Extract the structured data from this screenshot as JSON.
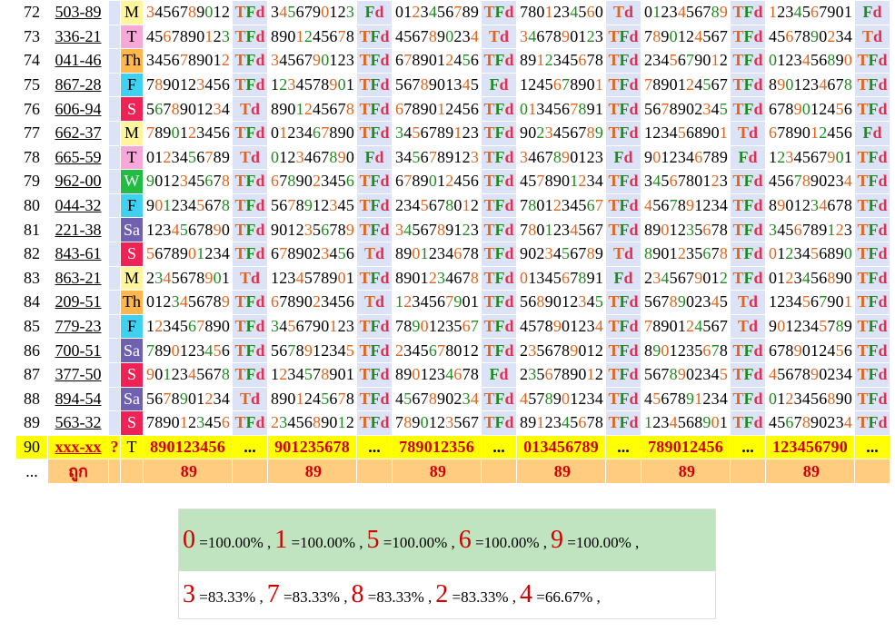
{
  "rows": [
    {
      "no": "72",
      "code": "503-89",
      "day": "M",
      "nums": [
        "3456789012",
        "3456790123",
        "0123456789",
        "7801234560",
        "0123456789",
        "1234567901"
      ],
      "res": [
        "TFd",
        "Fd",
        "TFd",
        "Td",
        "TFd",
        "Fd"
      ]
    },
    {
      "no": "73",
      "code": "336-21",
      "day": "T",
      "nums": [
        "4567890123",
        "8901245678",
        "4567890234",
        "3467890123",
        "7890124567",
        "4567890234"
      ],
      "res": [
        "TFd",
        "TFd",
        "Td",
        "TFd",
        "TFd",
        "Td"
      ]
    },
    {
      "no": "74",
      "code": "041-46",
      "day": "Th",
      "nums": [
        "3456789012",
        "3456790123",
        "6789012456",
        "8912345678",
        "2345679012",
        "0123456890"
      ],
      "res": [
        "TFd",
        "TFd",
        "TFd",
        "TFd",
        "TFd",
        "TFd"
      ]
    },
    {
      "no": "75",
      "code": "867-28",
      "day": "F",
      "nums": [
        "7890123456",
        "1234578901",
        "5678901345",
        "1245678901",
        "7890124567",
        "8901234678"
      ],
      "res": [
        "TFd",
        "TFd",
        "Fd",
        "TFd",
        "TFd",
        "TFd"
      ]
    },
    {
      "no": "76",
      "code": "606-94",
      "day": "S",
      "nums": [
        "5678901234",
        "8901245678",
        "6789012456",
        "0134567891",
        "5678902345",
        "6789012456"
      ],
      "res": [
        "Td",
        "TFd",
        "TFd",
        "TFd",
        "TFd",
        "TFd"
      ]
    },
    {
      "no": "77",
      "code": "662-37",
      "day": "M",
      "nums": [
        "7890123456",
        "0123467890",
        "3456789123",
        "9023456789",
        "1234568901",
        "6789012456"
      ],
      "res": [
        "TFd",
        "TFd",
        "TFd",
        "TFd",
        "Td",
        "Fd"
      ]
    },
    {
      "no": "78",
      "code": "665-59",
      "day": "T",
      "nums": [
        "0123456789",
        "0123467890",
        "3456789123",
        "3467890123",
        "9012346789",
        "1234567901"
      ],
      "res": [
        "Td",
        "Fd",
        "TFd",
        "Fd",
        "Fd",
        "TFd"
      ]
    },
    {
      "no": "79",
      "code": "962-00",
      "day": "W",
      "nums": [
        "9012345678",
        "6789023456",
        "6789012456",
        "4578901234",
        "3456780123",
        "4567890234"
      ],
      "res": [
        "TFd",
        "TFd",
        "TFd",
        "TFd",
        "TFd",
        "TFd"
      ]
    },
    {
      "no": "80",
      "code": "044-32",
      "day": "F",
      "nums": [
        "9012345678",
        "5678912345",
        "2345678012",
        "7801234567",
        "4567891234",
        "8901234678"
      ],
      "res": [
        "TFd",
        "TFd",
        "TFd",
        "TFd",
        "TFd",
        "TFd"
      ]
    },
    {
      "no": "81",
      "code": "221-38",
      "day": "Sa",
      "nums": [
        "1234567890",
        "9012356789",
        "3456789123",
        "7801234567",
        "8901235678",
        "3456789123"
      ],
      "res": [
        "TFd",
        "TFd",
        "TFd",
        "TFd",
        "TFd",
        "TFd"
      ]
    },
    {
      "no": "82",
      "code": "843-61",
      "day": "S",
      "nums": [
        "5678901234",
        "6789023456",
        "8901234678",
        "9023456789",
        "8901235678",
        "0123456890"
      ],
      "res": [
        "TFd",
        "Td",
        "TFd",
        "Td",
        "TFd",
        "TFd"
      ]
    },
    {
      "no": "83",
      "code": "863-21",
      "day": "M",
      "nums": [
        "2345678901",
        "1234578901",
        "8901234678",
        "0134567891",
        "2345679012",
        "0123456890"
      ],
      "res": [
        "Td",
        "TFd",
        "TFd",
        "Fd",
        "TFd",
        "TFd"
      ]
    },
    {
      "no": "84",
      "code": "209-51",
      "day": "Th",
      "nums": [
        "0123456789",
        "6789023456",
        "1234567901",
        "5689012345",
        "5678902345",
        "1234567901"
      ],
      "res": [
        "TFd",
        "Td",
        "TFd",
        "TFd",
        "Td",
        "TFd"
      ]
    },
    {
      "no": "85",
      "code": "779-23",
      "day": "F",
      "nums": [
        "1234567890",
        "3456790123",
        "7890123567",
        "4578901234",
        "7890124567",
        "9012345789"
      ],
      "res": [
        "TFd",
        "TFd",
        "TFd",
        "TFd",
        "Td",
        "TFd"
      ]
    },
    {
      "no": "86",
      "code": "700-51",
      "day": "Sa",
      "nums": [
        "7890123456",
        "5678912345",
        "2345678012",
        "2356789012",
        "8901235678",
        "6789012456"
      ],
      "res": [
        "TFd",
        "TFd",
        "TFd",
        "TFd",
        "TFd",
        "TFd"
      ]
    },
    {
      "no": "87",
      "code": "377-50",
      "day": "S",
      "nums": [
        "9012345678",
        "1234578901",
        "8901234678",
        "2356789012",
        "5678902345",
        "4567890234"
      ],
      "res": [
        "TFd",
        "TFd",
        "Fd",
        "TFd",
        "TFd",
        "TFd"
      ]
    },
    {
      "no": "88",
      "code": "894-54",
      "day": "Sa",
      "nums": [
        "5678901234",
        "8901245678",
        "4567890234",
        "4578901234",
        "4567891234",
        "0123456890"
      ],
      "res": [
        "Td",
        "TFd",
        "TFd",
        "TFd",
        "TFd",
        "TFd"
      ]
    },
    {
      "no": "89",
      "code": "563-32",
      "day": "S",
      "nums": [
        "7890123456",
        "2345689012",
        "7890123567",
        "8912345678",
        "1234568901",
        "4567890234"
      ],
      "res": [
        "TFd",
        "TFd",
        "TFd",
        "TFd",
        "TFd",
        "TFd"
      ]
    }
  ],
  "current": {
    "no": "90",
    "code": "xxx-xx",
    "q": "?",
    "day": "T",
    "nums": [
      "890123456",
      "901235678",
      "789012356",
      "013456789",
      "789012456",
      "123456790"
    ],
    "res": [
      "...",
      "...",
      "...",
      "...",
      "...",
      "..."
    ]
  },
  "footer": {
    "no": "...",
    "label": "ถูก",
    "vals": [
      "89",
      "89",
      "89",
      "89",
      "89",
      "89"
    ]
  },
  "stats_line1": [
    {
      "digit": "0",
      "pct": "=100.00%"
    },
    {
      "digit": "1",
      "pct": "=100.00%"
    },
    {
      "digit": "5",
      "pct": "=100.00%"
    },
    {
      "digit": "6",
      "pct": "=100.00%"
    },
    {
      "digit": "9",
      "pct": "=100.00%"
    }
  ],
  "stats_line2": [
    {
      "digit": "3",
      "pct": "=83.33%"
    },
    {
      "digit": "7",
      "pct": "=83.33%"
    },
    {
      "digit": "8",
      "pct": "=83.33%"
    },
    {
      "digit": "2",
      "pct": "=83.33%"
    },
    {
      "digit": "4",
      "pct": "=66.67%"
    }
  ]
}
